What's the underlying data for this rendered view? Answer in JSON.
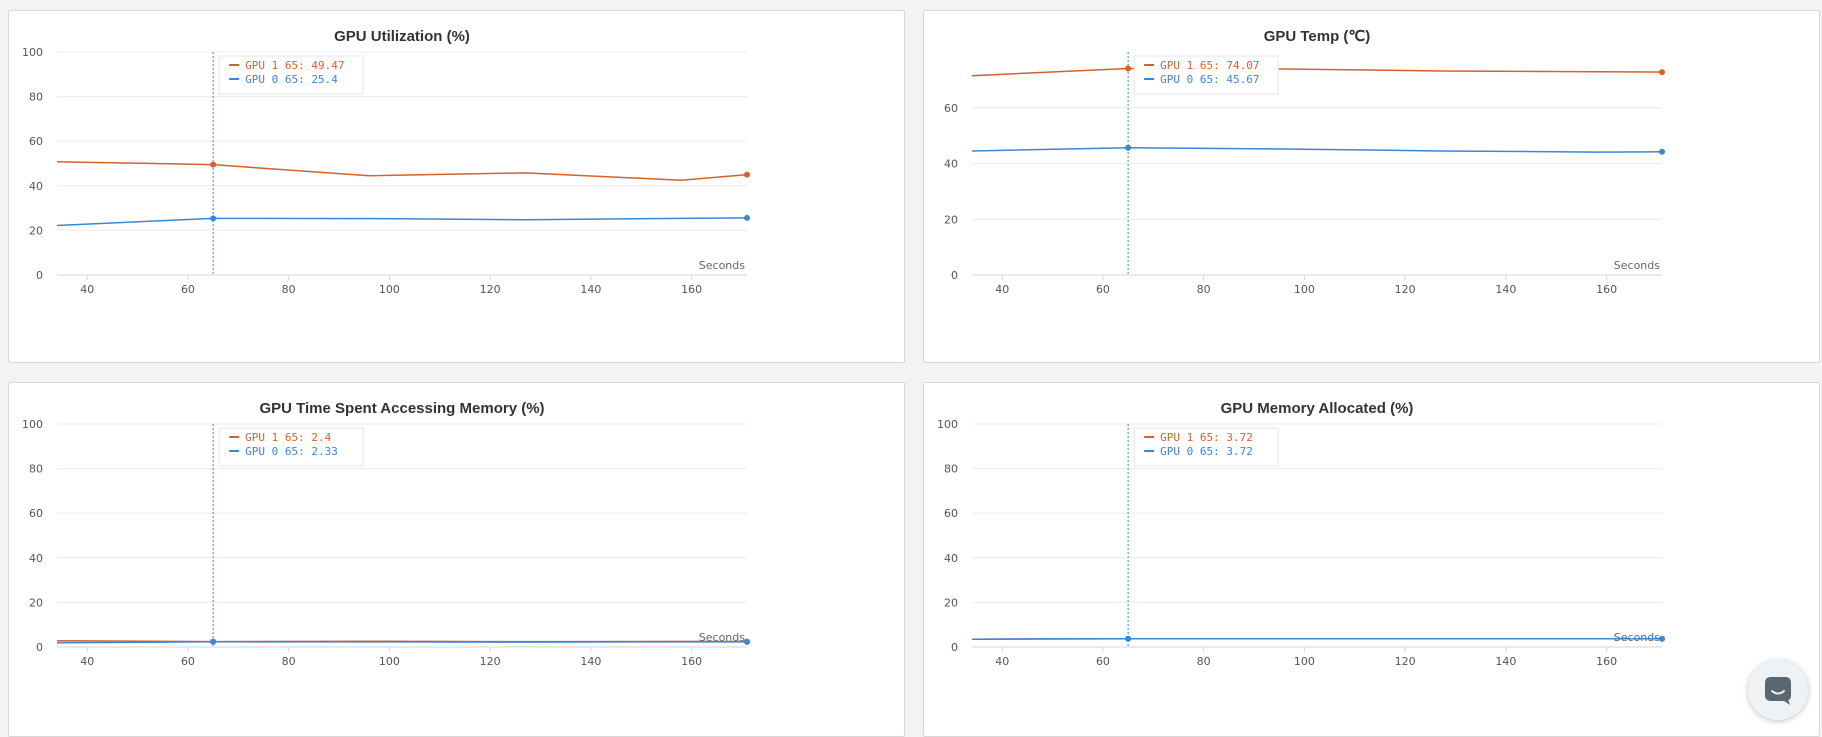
{
  "colors": {
    "gpu1": "#d4622e",
    "gpu0": "#3c86d6",
    "grid": "#ececec",
    "axis": "#d6d6d6"
  },
  "chat": {
    "icon": "chat-bubble-icon"
  },
  "chart_data": [
    {
      "type": "line",
      "title": "GPU Utilization (%)",
      "xlabel": "Seconds",
      "ylabel": "",
      "xlim": [
        34,
        171
      ],
      "ylim": [
        0,
        100
      ],
      "xticks": [
        40,
        60,
        80,
        100,
        120,
        140,
        160
      ],
      "yticks": [
        0,
        20,
        40,
        60,
        80,
        100
      ],
      "hover_x": 65,
      "series": [
        {
          "name": "GPU 1",
          "color": "#d4622e",
          "x": [
            34,
            65,
            96,
            127,
            158,
            171
          ],
          "y": [
            50.8,
            49.47,
            44.5,
            45.8,
            42.5,
            45.0
          ],
          "tooltip": "GPU 1 65: 49.47"
        },
        {
          "name": "GPU 0",
          "color": "#3c86d6",
          "x": [
            34,
            65,
            96,
            127,
            158,
            171
          ],
          "y": [
            22.2,
            25.4,
            25.3,
            24.8,
            25.4,
            25.6
          ],
          "tooltip": "GPU 0 65: 25.4"
        }
      ]
    },
    {
      "type": "line",
      "title": "GPU Temp (℃)",
      "xlabel": "Seconds",
      "ylabel": "",
      "xlim": [
        34,
        171
      ],
      "ylim": [
        0,
        80
      ],
      "xticks": [
        40,
        60,
        80,
        100,
        120,
        140,
        160
      ],
      "yticks": [
        0,
        20,
        40,
        60
      ],
      "hover_x": 65,
      "series": [
        {
          "name": "GPU 1",
          "color": "#d4622e",
          "x": [
            34,
            65,
            96,
            127,
            158,
            171
          ],
          "y": [
            71.5,
            74.07,
            73.9,
            73.2,
            72.9,
            72.8
          ],
          "tooltip": "GPU 1 65: 74.07"
        },
        {
          "name": "GPU 0",
          "color": "#3c86d6",
          "x": [
            34,
            65,
            96,
            127,
            158,
            171
          ],
          "y": [
            44.5,
            45.67,
            45.2,
            44.5,
            44.1,
            44.2
          ],
          "tooltip": "GPU 0 65: 45.67"
        }
      ]
    },
    {
      "type": "line",
      "title": "GPU Time Spent Accessing Memory (%)",
      "xlabel": "Seconds",
      "ylabel": "",
      "xlim": [
        34,
        171
      ],
      "ylim": [
        0,
        100
      ],
      "xticks": [
        40,
        60,
        80,
        100,
        120,
        140,
        160
      ],
      "yticks": [
        0,
        20,
        40,
        60,
        80,
        100
      ],
      "hover_x": 65,
      "series": [
        {
          "name": "GPU 1",
          "color": "#d4622e",
          "x": [
            34,
            65,
            96,
            127,
            158,
            171
          ],
          "y": [
            2.8,
            2.4,
            2.6,
            2.4,
            2.5,
            2.4
          ],
          "tooltip": "GPU 1 65: 2.4"
        },
        {
          "name": "GPU 0",
          "color": "#3c86d6",
          "x": [
            34,
            65,
            96,
            127,
            158,
            171
          ],
          "y": [
            1.9,
            2.33,
            2.3,
            2.2,
            2.3,
            2.3
          ],
          "tooltip": "GPU 0 65: 2.33"
        }
      ]
    },
    {
      "type": "line",
      "title": "GPU Memory Allocated (%)",
      "xlabel": "Seconds",
      "ylabel": "",
      "xlim": [
        34,
        171
      ],
      "ylim": [
        0,
        100
      ],
      "xticks": [
        40,
        60,
        80,
        100,
        120,
        140,
        160
      ],
      "yticks": [
        0,
        20,
        40,
        60,
        80,
        100
      ],
      "hover_x": 65,
      "series": [
        {
          "name": "GPU 1",
          "color": "#d4622e",
          "x": [
            34,
            65,
            96,
            127,
            158,
            171
          ],
          "y": [
            3.5,
            3.72,
            3.72,
            3.72,
            3.72,
            3.72
          ],
          "tooltip": "GPU 1 65: 3.72"
        },
        {
          "name": "GPU 0",
          "color": "#3c86d6",
          "x": [
            34,
            65,
            96,
            127,
            158,
            171
          ],
          "y": [
            3.5,
            3.72,
            3.72,
            3.72,
            3.72,
            3.72
          ],
          "tooltip": "GPU 0 65: 3.72"
        }
      ]
    }
  ]
}
